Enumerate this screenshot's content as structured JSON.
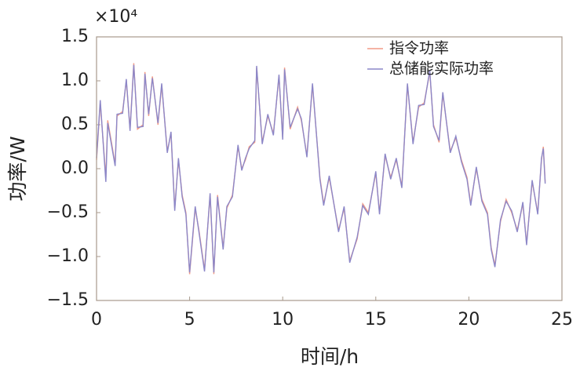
{
  "chart_data": {
    "type": "line",
    "x_label": "时间/h",
    "y_label": "功率/W",
    "y_multiplier": "×10⁴",
    "x": [
      0,
      0.2,
      0.5,
      0.6,
      1.0,
      1.1,
      1.4,
      1.6,
      1.8,
      2.0,
      2.2,
      2.5,
      2.6,
      2.8,
      3.0,
      3.3,
      3.5,
      3.8,
      4.0,
      4.2,
      4.4,
      4.6,
      4.8,
      5.0,
      5.3,
      5.5,
      5.8,
      6.1,
      6.3,
      6.5,
      6.8,
      7.0,
      7.3,
      7.6,
      7.8,
      8.0,
      8.2,
      8.5,
      8.6,
      8.9,
      9.2,
      9.5,
      9.8,
      10.0,
      10.1,
      10.4,
      10.8,
      11.0,
      11.3,
      11.6,
      12.0,
      12.2,
      12.5,
      13.0,
      13.3,
      13.6,
      14.0,
      14.3,
      14.6,
      15.0,
      15.2,
      15.5,
      15.8,
      16.1,
      16.4,
      16.7,
      17.0,
      17.3,
      17.6,
      17.9,
      18.1,
      18.4,
      18.6,
      19.0,
      19.3,
      19.6,
      19.9,
      20.1,
      20.4,
      20.7,
      21.0,
      21.2,
      21.4,
      21.7,
      22.0,
      22.3,
      22.6,
      22.9,
      23.1,
      23.4,
      23.7,
      23.9,
      24.0,
      24.1
    ],
    "series": [
      {
        "name": "指令功率",
        "color": "#f29a86",
        "values": [
          0.1,
          0.75,
          -0.1,
          0.55,
          0.05,
          0.6,
          0.65,
          1.0,
          0.45,
          1.2,
          0.45,
          0.5,
          1.1,
          0.6,
          1.05,
          0.5,
          0.95,
          0.2,
          0.4,
          -0.45,
          0.1,
          -0.3,
          -0.5,
          -1.2,
          -0.45,
          -0.7,
          -1.15,
          -0.3,
          -1.2,
          -0.3,
          -0.9,
          -0.45,
          -0.3,
          0.25,
          0.0,
          0.1,
          0.25,
          0.3,
          1.15,
          0.3,
          0.6,
          0.4,
          1.05,
          0.35,
          1.15,
          0.45,
          0.7,
          0.55,
          0.15,
          0.95,
          -0.1,
          -0.4,
          -0.1,
          -0.7,
          -0.45,
          -1.05,
          -0.8,
          -0.4,
          -0.5,
          -0.05,
          -0.5,
          0.15,
          -0.1,
          0.1,
          -0.2,
          0.95,
          0.3,
          0.7,
          0.75,
          1.1,
          0.5,
          0.3,
          0.85,
          0.2,
          0.35,
          0.1,
          -0.1,
          -0.4,
          0.0,
          -0.35,
          -0.5,
          -0.9,
          -1.1,
          -0.6,
          -0.35,
          -0.5,
          -0.7,
          -0.4,
          -0.85,
          -0.15,
          -0.5,
          0.1,
          0.25,
          -0.15
        ]
      },
      {
        "name": "总储能实际功率",
        "color": "#8c87c8",
        "values": [
          0.12,
          0.78,
          -0.15,
          0.52,
          0.03,
          0.62,
          0.63,
          1.02,
          0.43,
          1.18,
          0.47,
          0.48,
          1.08,
          0.62,
          1.03,
          0.52,
          0.97,
          0.18,
          0.42,
          -0.48,
          0.12,
          -0.32,
          -0.52,
          -1.18,
          -0.43,
          -0.72,
          -1.17,
          -0.28,
          -1.18,
          -0.32,
          -0.92,
          -0.43,
          -0.32,
          0.27,
          -0.02,
          0.12,
          0.23,
          0.32,
          1.17,
          0.28,
          0.62,
          0.38,
          1.07,
          0.33,
          1.13,
          0.47,
          0.68,
          0.57,
          0.13,
          0.97,
          -0.12,
          -0.42,
          -0.08,
          -0.72,
          -0.43,
          -1.07,
          -0.78,
          -0.42,
          -0.52,
          -0.03,
          -0.52,
          0.17,
          -0.12,
          0.12,
          -0.22,
          0.97,
          0.28,
          0.72,
          0.73,
          1.12,
          0.48,
          0.32,
          0.87,
          0.18,
          0.37,
          0.08,
          -0.12,
          -0.42,
          0.02,
          -0.37,
          -0.52,
          -0.92,
          -1.12,
          -0.58,
          -0.37,
          -0.48,
          -0.72,
          -0.38,
          -0.87,
          -0.13,
          -0.52,
          0.12,
          0.23,
          -0.17
        ]
      }
    ],
    "xlim": [
      0,
      25
    ],
    "xticks": [
      0,
      5,
      10,
      15,
      20,
      25
    ],
    "ylim": [
      -1.5,
      1.5
    ],
    "yticks": [
      {
        "value": -1.5,
        "label": "−1.5"
      },
      {
        "value": -1,
        "label": "−1.0"
      },
      {
        "value": -0.5,
        "label": "−0.5"
      },
      {
        "value": 0,
        "label": "0.0"
      },
      0.5,
      {
        "value": 1,
        "label": "1.0"
      },
      1.5
    ],
    "legend": "upper right"
  }
}
